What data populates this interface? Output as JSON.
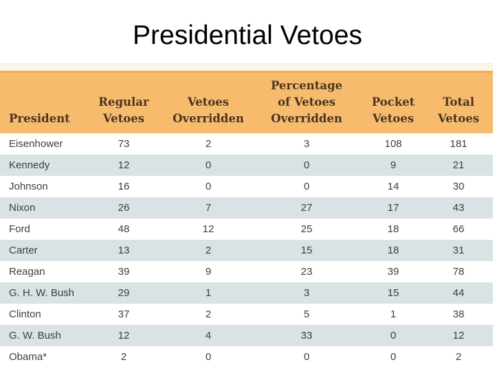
{
  "page": {
    "title": "Presidential Vetoes"
  },
  "colors": {
    "header_bg": "#F6BB6C",
    "header_border_top": "#F0AC5B",
    "header_text": "#4B3423",
    "row_stripe": "#D9E2E5",
    "row_plain": "#FFFFFF",
    "body_text": "#3D3D3D",
    "title_text": "#000000",
    "top_strip": "#FBF6EA"
  },
  "table": {
    "columns": [
      {
        "id": "president",
        "lines": [
          "President"
        ],
        "align": "left"
      },
      {
        "id": "regular-vetoes",
        "lines": [
          "Regular",
          "Vetoes"
        ],
        "align": "center"
      },
      {
        "id": "vetoes-overridden",
        "lines": [
          "Vetoes",
          "Overridden"
        ],
        "align": "center"
      },
      {
        "id": "pct-vetoes-overridden",
        "lines": [
          "Percentage",
          "of Vetoes",
          "Overridden"
        ],
        "align": "center"
      },
      {
        "id": "pocket-vetoes",
        "lines": [
          "Pocket",
          "Vetoes"
        ],
        "align": "center"
      },
      {
        "id": "total-vetoes",
        "lines": [
          "Total",
          "Vetoes"
        ],
        "align": "center"
      }
    ],
    "rows": [
      {
        "president": "Eisenhower",
        "values": [
          73,
          2,
          3,
          108,
          181
        ]
      },
      {
        "president": "Kennedy",
        "values": [
          12,
          0,
          0,
          9,
          21
        ]
      },
      {
        "president": "Johnson",
        "values": [
          16,
          0,
          0,
          14,
          30
        ]
      },
      {
        "president": "Nixon",
        "values": [
          26,
          7,
          27,
          17,
          43
        ]
      },
      {
        "president": "Ford",
        "values": [
          48,
          12,
          25,
          18,
          66
        ]
      },
      {
        "president": "Carter",
        "values": [
          13,
          2,
          15,
          18,
          31
        ]
      },
      {
        "president": "Reagan",
        "values": [
          39,
          9,
          23,
          39,
          78
        ]
      },
      {
        "president": "G. H. W. Bush",
        "values": [
          29,
          1,
          3,
          15,
          44
        ]
      },
      {
        "president": "Clinton",
        "values": [
          37,
          2,
          5,
          1,
          38
        ]
      },
      {
        "president": "G. W. Bush",
        "values": [
          12,
          4,
          33,
          0,
          12
        ]
      },
      {
        "president": "Obama*",
        "values": [
          2,
          0,
          0,
          0,
          2
        ]
      }
    ]
  },
  "chart_data": {
    "type": "table",
    "title": "Presidential Vetoes",
    "columns": [
      "President",
      "Regular Vetoes",
      "Vetoes Overridden",
      "Percentage of Vetoes Overridden",
      "Pocket Vetoes",
      "Total Vetoes"
    ],
    "rows": [
      [
        "Eisenhower",
        73,
        2,
        3,
        108,
        181
      ],
      [
        "Kennedy",
        12,
        0,
        0,
        9,
        21
      ],
      [
        "Johnson",
        16,
        0,
        0,
        14,
        30
      ],
      [
        "Nixon",
        26,
        7,
        27,
        17,
        43
      ],
      [
        "Ford",
        48,
        12,
        25,
        18,
        66
      ],
      [
        "Carter",
        13,
        2,
        15,
        18,
        31
      ],
      [
        "Reagan",
        39,
        9,
        23,
        39,
        78
      ],
      [
        "G. H. W. Bush",
        29,
        1,
        3,
        15,
        44
      ],
      [
        "Clinton",
        37,
        2,
        5,
        1,
        38
      ],
      [
        "G. W. Bush",
        12,
        4,
        33,
        0,
        12
      ],
      [
        "Obama*",
        2,
        0,
        0,
        0,
        2
      ]
    ]
  }
}
